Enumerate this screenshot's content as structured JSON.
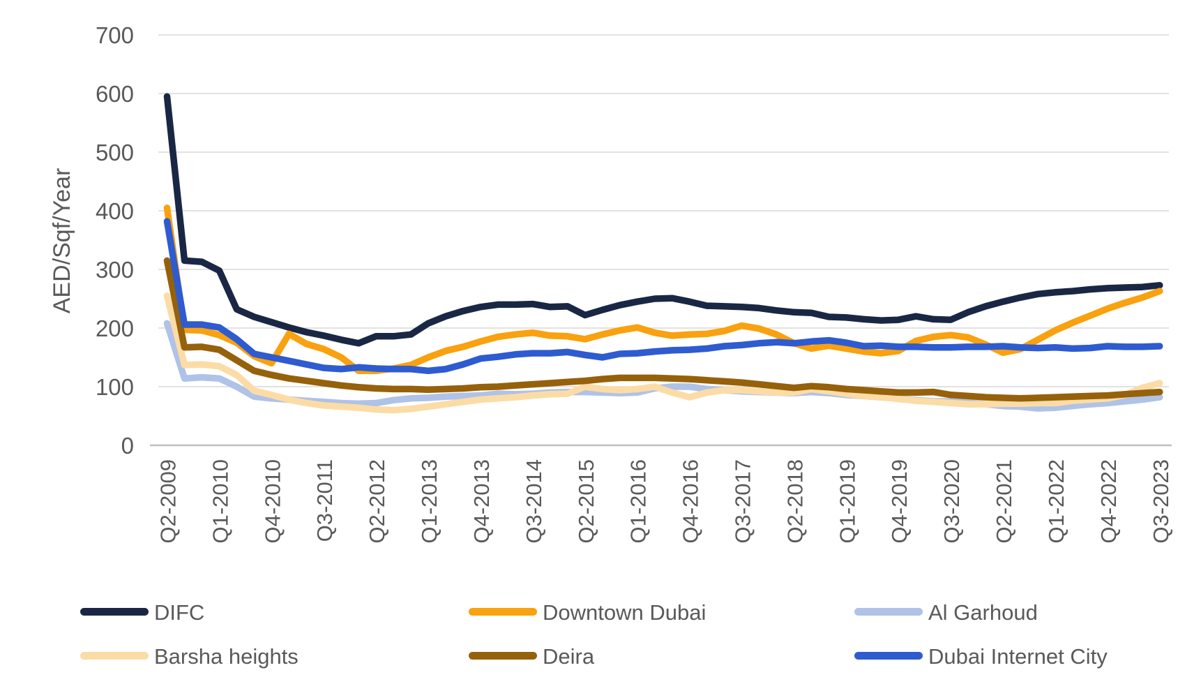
{
  "chart_data": {
    "type": "line",
    "title": "",
    "ylabel": "AED/Sqf/Year",
    "xlabel": "",
    "ylim": [
      0,
      700
    ],
    "y_ticks": [
      0,
      100,
      200,
      300,
      400,
      500,
      600,
      700
    ],
    "x_tick_labels": [
      "Q2-2009",
      "Q1-2010",
      "Q4-2010",
      "Q3-2011",
      "Q2-2012",
      "Q1-2013",
      "Q4-2013",
      "Q3-2014",
      "Q2-2015",
      "Q1-2016",
      "Q4-2016",
      "Q3-2017",
      "Q2-2018",
      "Q1-2019",
      "Q4-2019",
      "Q3-2020",
      "Q2-2021",
      "Q1-2022",
      "Q4-2022",
      "Q3-2023"
    ],
    "x_tick_step": 3,
    "points_count": 58,
    "grid": "horizontal-on",
    "legend_position": "bottom",
    "axis_text_color": "#595959",
    "gridline_color": "#D9D9D9",
    "axis_line_color": "#BFBFBF",
    "series": [
      {
        "name": "DIFC",
        "color": "#1A2744",
        "values": [
          595,
          315,
          313,
          298,
          232,
          219,
          210,
          201,
          193,
          187,
          180,
          174,
          186,
          186,
          189,
          208,
          220,
          229,
          236,
          240,
          240,
          241,
          236,
          237,
          222,
          231,
          239,
          245,
          250,
          251,
          245,
          238,
          237,
          236,
          234,
          230,
          227,
          226,
          219,
          218,
          215,
          213,
          214,
          220,
          215,
          214,
          227,
          237,
          245,
          252,
          258,
          261,
          263,
          266,
          268,
          269,
          270,
          273
        ]
      },
      {
        "name": "Downtown Dubai",
        "color": "#F9A10E",
        "values": [
          405,
          197,
          196,
          188,
          175,
          152,
          140,
          190,
          173,
          164,
          150,
          127,
          127,
          131,
          137,
          150,
          161,
          168,
          177,
          185,
          189,
          192,
          187,
          186,
          181,
          189,
          196,
          201,
          192,
          187,
          189,
          190,
          195,
          204,
          199,
          189,
          174,
          165,
          170,
          165,
          160,
          157,
          161,
          178,
          185,
          188,
          184,
          172,
          158,
          164,
          180,
          196,
          209,
          221,
          233,
          243,
          252,
          263
        ]
      },
      {
        "name": "Al Garhoud",
        "color": "#AFC2E8",
        "values": [
          208,
          114,
          116,
          114,
          100,
          83,
          80,
          78,
          76,
          74,
          72,
          71,
          72,
          77,
          80,
          81,
          83,
          84,
          85,
          88,
          87,
          88,
          90,
          91,
          91,
          90,
          89,
          90,
          97,
          100,
          100,
          96,
          94,
          92,
          91,
          90,
          89,
          91,
          89,
          86,
          84,
          82,
          80,
          77,
          75,
          75,
          73,
          70,
          67,
          66,
          63,
          64,
          67,
          70,
          72,
          75,
          78,
          82
        ]
      },
      {
        "name": "Barsha heights",
        "color": "#FCDCA6",
        "values": [
          255,
          137,
          138,
          135,
          120,
          93,
          86,
          78,
          72,
          68,
          66,
          64,
          61,
          60,
          62,
          66,
          70,
          74,
          78,
          80,
          82,
          85,
          87,
          88,
          100,
          96,
          94,
          96,
          100,
          90,
          82,
          90,
          94,
          94,
          92,
          90,
          90,
          96,
          92,
          88,
          84,
          82,
          79,
          76,
          74,
          72,
          70,
          70,
          71,
          71,
          72,
          72,
          76,
          78,
          80,
          86,
          98,
          106
        ]
      },
      {
        "name": "Deira",
        "color": "#96610B",
        "values": [
          315,
          167,
          168,
          163,
          145,
          127,
          120,
          114,
          110,
          106,
          102,
          99,
          97,
          96,
          96,
          95,
          96,
          97,
          99,
          100,
          102,
          104,
          106,
          108,
          110,
          113,
          115,
          115,
          115,
          114,
          113,
          111,
          109,
          107,
          104,
          101,
          98,
          101,
          99,
          96,
          94,
          92,
          90,
          90,
          91,
          86,
          84,
          82,
          81,
          80,
          81,
          82,
          83,
          84,
          85,
          87,
          89,
          91
        ]
      },
      {
        "name": "Dubai Internet City",
        "color": "#2E5BD0",
        "values": [
          382,
          206,
          206,
          201,
          181,
          156,
          150,
          144,
          138,
          132,
          130,
          133,
          131,
          130,
          130,
          127,
          130,
          138,
          148,
          151,
          155,
          157,
          157,
          159,
          154,
          150,
          156,
          157,
          160,
          162,
          163,
          165,
          169,
          171,
          174,
          176,
          174,
          177,
          179,
          175,
          169,
          170,
          168,
          168,
          167,
          167,
          168,
          168,
          169,
          167,
          166,
          167,
          165,
          166,
          169,
          168,
          168,
          169
        ]
      }
    ],
    "legend": {
      "rows": [
        [
          "DIFC",
          "Downtown Dubai",
          "Al Garhoud"
        ],
        [
          "Barsha heights",
          "Deira",
          "Dubai Internet City"
        ]
      ]
    }
  }
}
